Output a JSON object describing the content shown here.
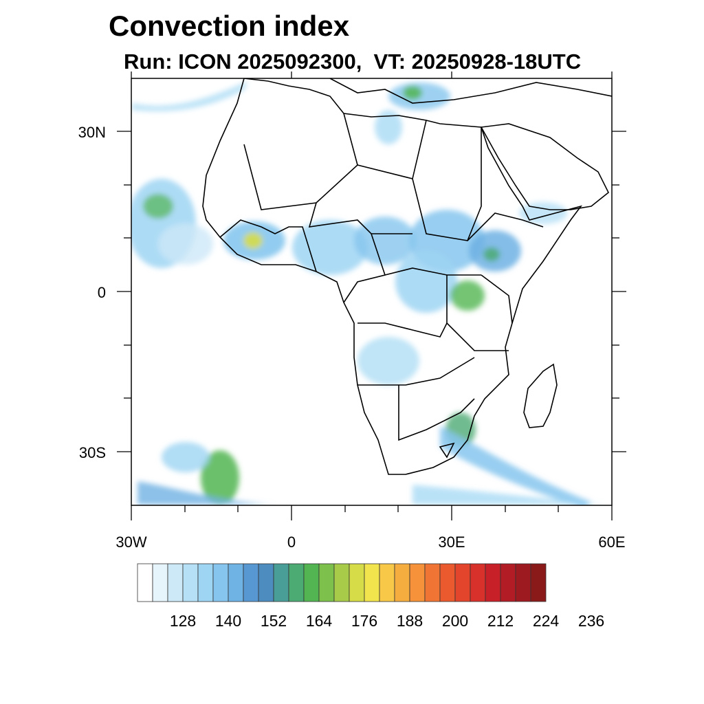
{
  "title": "Convection index",
  "subtitle": "Run: ICON 2025092300,  VT: 20250928-18UTC",
  "axes": {
    "lat_labels": [
      "30N",
      "0",
      "30S"
    ],
    "lon_labels": [
      "30W",
      "0",
      "30E",
      "60E"
    ]
  },
  "colorbar": {
    "labels": [
      "128",
      "140",
      "152",
      "164",
      "176",
      "188",
      "200",
      "212",
      "224",
      "236"
    ],
    "colors": [
      "#ffffff",
      "#e6f4fb",
      "#cde9f8",
      "#b5e0f6",
      "#9dd5f3",
      "#86c6ee",
      "#6fb2e4",
      "#5898d2",
      "#4c8cbf",
      "#4a9e98",
      "#4caa73",
      "#52b552",
      "#7dc04c",
      "#a8cc4a",
      "#d6dc48",
      "#f2e44c",
      "#f8c948",
      "#f6ad40",
      "#f5923a",
      "#f07434",
      "#ea5a2e",
      "#e2452c",
      "#d8302a",
      "#c82028",
      "#b21c24",
      "#9d1a20",
      "#8a1a1a"
    ]
  },
  "map": {
    "lon_range": [
      -30,
      60
    ],
    "lat_range": [
      -40,
      40
    ]
  }
}
